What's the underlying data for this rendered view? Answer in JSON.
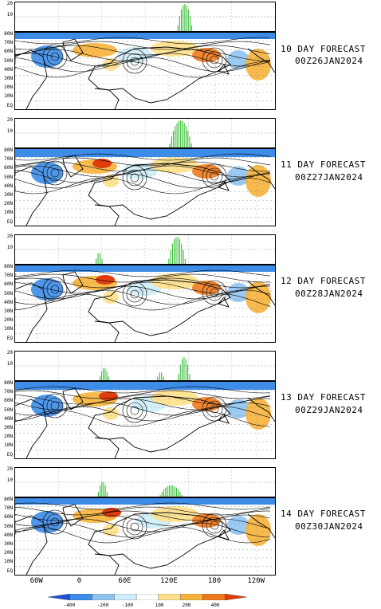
{
  "hist_ticks": [
    "20",
    "10"
  ],
  "lat_labels": [
    "80N",
    "70N",
    "60N",
    "50N",
    "40N",
    "30N",
    "20N",
    "10N",
    "EQ"
  ],
  "lon_labels": [
    "60W",
    "0",
    "60E",
    "120E",
    "180",
    "120W"
  ],
  "colorbar": {
    "labels": [
      "-400",
      "-200",
      "-100",
      "100",
      "200",
      "400"
    ],
    "colors": [
      "#1e4fd6",
      "#3c8ce8",
      "#8fc4f0",
      "#cdeefa",
      "#ffffff",
      "#ffe08a",
      "#f7b23a",
      "#ef7a1c",
      "#e03c0c"
    ]
  },
  "panels": [
    {
      "title": "10 DAY FORECAST",
      "date": "00Z26JAN2024",
      "hist": [
        {
          "c": 0.653,
          "w": 0.06,
          "h": 1.0
        }
      ]
    },
    {
      "title": "11 DAY FORECAST",
      "date": "00Z27JAN2024",
      "hist": [
        {
          "c": 0.637,
          "w": 0.09,
          "h": 1.0
        }
      ]
    },
    {
      "title": "12 DAY FORECAST",
      "date": "00Z28JAN2024",
      "hist": [
        {
          "c": 0.323,
          "w": 0.03,
          "h": 0.42
        },
        {
          "c": 0.623,
          "w": 0.07,
          "h": 1.0
        }
      ]
    },
    {
      "title": "13 DAY FORECAST",
      "date": "00Z29JAN2024",
      "hist": [
        {
          "c": 0.343,
          "w": 0.04,
          "h": 0.45
        },
        {
          "c": 0.56,
          "w": 0.03,
          "h": 0.3
        },
        {
          "c": 0.65,
          "w": 0.05,
          "h": 0.85
        }
      ]
    },
    {
      "title": "14 DAY FORECAST",
      "date": "00Z30JAN2024",
      "hist": [
        {
          "c": 0.337,
          "w": 0.04,
          "h": 0.55
        },
        {
          "c": 0.6,
          "w": 0.09,
          "h": 0.42
        }
      ]
    }
  ]
}
